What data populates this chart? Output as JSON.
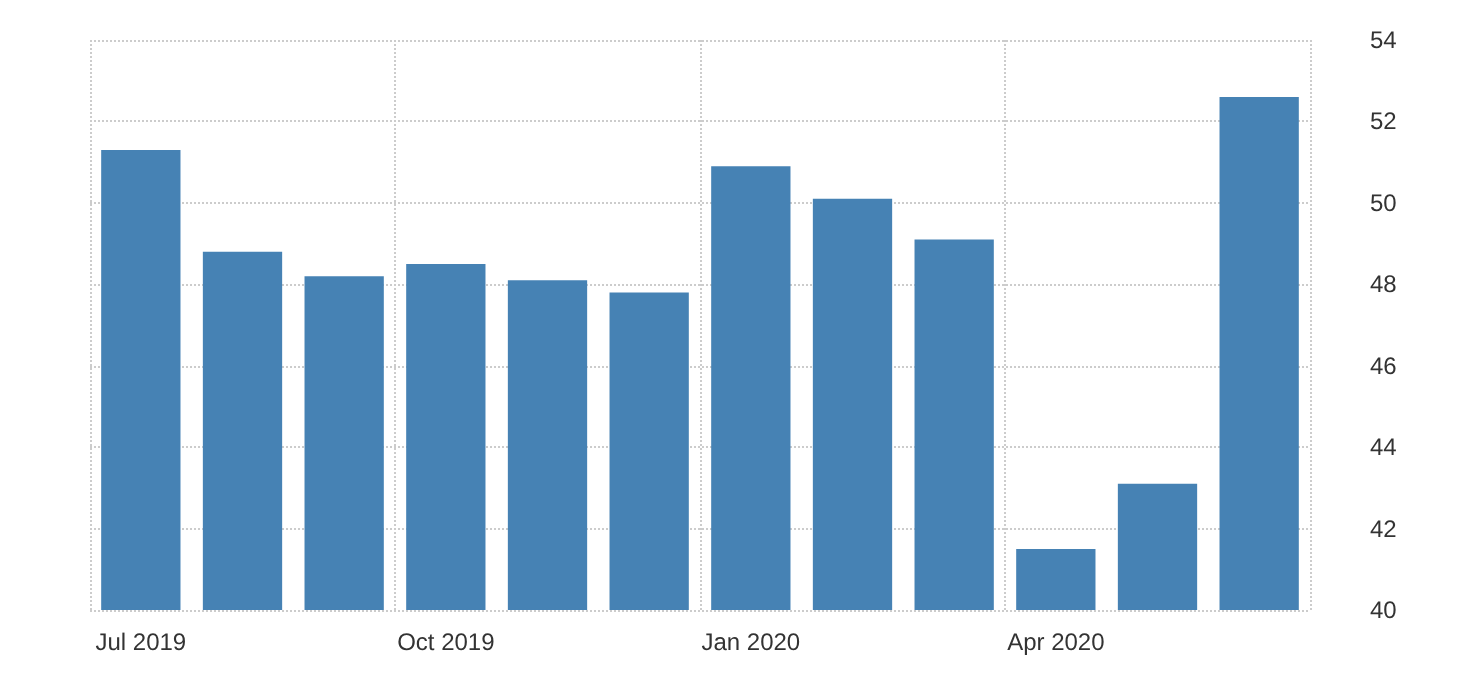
{
  "chart_data": {
    "type": "bar",
    "categories": [
      "Jul 2019",
      null,
      null,
      "Oct 2019",
      null,
      null,
      "Jan 2020",
      null,
      null,
      "Apr 2020",
      null,
      null
    ],
    "values": [
      51.3,
      48.8,
      48.2,
      48.5,
      48.1,
      47.8,
      50.9,
      50.1,
      49.1,
      41.5,
      43.1,
      52.6
    ],
    "color": "#4682b4",
    "ylim": [
      40,
      54
    ],
    "yticks": [
      40,
      42,
      44,
      46,
      48,
      50,
      52,
      54
    ],
    "grid": true
  }
}
